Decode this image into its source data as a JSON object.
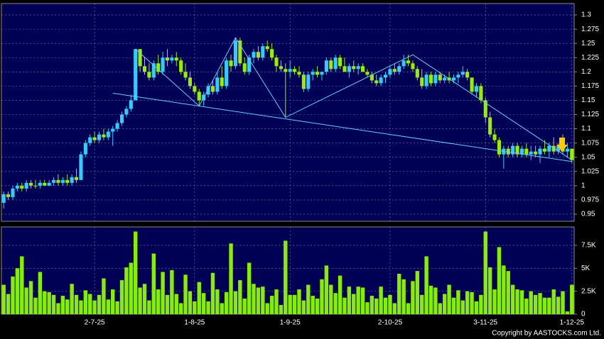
{
  "chart_data": {
    "type": "candlestick",
    "categories": [
      null,
      null,
      null,
      null,
      null,
      null,
      null,
      null,
      null,
      null,
      null,
      null,
      null,
      null,
      null,
      null,
      null,
      null,
      null,
      null,
      "2-7-25",
      null,
      null,
      null,
      null,
      null,
      null,
      null,
      null,
      null,
      null,
      null,
      null,
      null,
      null,
      null,
      null,
      null,
      null,
      null,
      null,
      null,
      "1-8-25",
      null,
      null,
      null,
      null,
      null,
      null,
      null,
      null,
      null,
      null,
      null,
      null,
      null,
      null,
      null,
      null,
      null,
      null,
      null,
      null,
      "1-9-25",
      null,
      null,
      null,
      null,
      null,
      null,
      null,
      null,
      null,
      null,
      null,
      null,
      null,
      null,
      null,
      null,
      null,
      null,
      null,
      null,
      null,
      "2-10-25",
      null,
      null,
      null,
      null,
      null,
      null,
      null,
      null,
      null,
      null,
      null,
      null,
      null,
      null,
      null,
      null,
      null,
      null,
      null,
      null,
      "3-11-25",
      null,
      null,
      null,
      null,
      null,
      null,
      null,
      null,
      null,
      null,
      null,
      null,
      null,
      null,
      null,
      null,
      null,
      null,
      "1-12-25"
    ],
    "ohlc": [
      [
        0.97,
        0.99,
        0.96,
        0.985
      ],
      [
        0.985,
        0.99,
        0.975,
        0.98
      ],
      [
        0.98,
        1.0,
        0.975,
        0.995
      ],
      [
        0.995,
        1.005,
        0.99,
        1.0
      ],
      [
        1.0,
        1.005,
        0.99,
        0.995
      ],
      [
        0.995,
        1.01,
        0.99,
        1.005
      ],
      [
        1.005,
        1.01,
        0.995,
        1.0
      ],
      [
        1.0,
        1.01,
        0.995,
        1.0
      ],
      [
        1.0,
        1.01,
        0.995,
        1.005
      ],
      [
        1.005,
        1.01,
        1.0,
        1.0
      ],
      [
        1.0,
        1.01,
        1.0,
        1.005
      ],
      [
        1.005,
        1.015,
        1.0,
        1.01
      ],
      [
        1.01,
        1.02,
        1.0,
        1.005
      ],
      [
        1.005,
        1.015,
        1.0,
        1.01
      ],
      [
        1.01,
        1.02,
        1.0,
        1.005
      ],
      [
        1.005,
        1.02,
        1.0,
        1.015
      ],
      [
        1.015,
        1.03,
        1.005,
        1.01
      ],
      [
        1.01,
        1.06,
        1.01,
        1.055
      ],
      [
        1.055,
        1.08,
        1.05,
        1.075
      ],
      [
        1.075,
        1.09,
        1.07,
        1.085
      ],
      [
        1.085,
        1.095,
        1.075,
        1.08
      ],
      [
        1.08,
        1.095,
        1.075,
        1.09
      ],
      [
        1.09,
        1.1,
        1.08,
        1.085
      ],
      [
        1.085,
        1.1,
        1.08,
        1.095
      ],
      [
        1.095,
        1.105,
        1.07,
        1.1
      ],
      [
        1.1,
        1.115,
        1.095,
        1.11
      ],
      [
        1.11,
        1.13,
        1.105,
        1.125
      ],
      [
        1.125,
        1.14,
        1.12,
        1.135
      ],
      [
        1.135,
        1.16,
        1.13,
        1.15
      ],
      [
        1.15,
        1.24,
        1.15,
        1.24
      ],
      [
        1.24,
        1.24,
        1.2,
        1.21
      ],
      [
        1.21,
        1.225,
        1.195,
        1.2
      ],
      [
        1.2,
        1.215,
        1.185,
        1.19
      ],
      [
        1.19,
        1.22,
        1.185,
        1.215
      ],
      [
        1.215,
        1.23,
        1.195,
        1.2
      ],
      [
        1.2,
        1.235,
        1.195,
        1.225
      ],
      [
        1.225,
        1.24,
        1.21,
        1.22
      ],
      [
        1.22,
        1.23,
        1.215,
        1.225
      ],
      [
        1.225,
        1.235,
        1.21,
        1.22
      ],
      [
        1.22,
        1.225,
        1.195,
        1.2
      ],
      [
        1.2,
        1.215,
        1.185,
        1.19
      ],
      [
        1.19,
        1.2,
        1.17,
        1.175
      ],
      [
        1.175,
        1.18,
        1.16,
        1.165
      ],
      [
        1.165,
        1.17,
        1.14,
        1.15
      ],
      [
        1.15,
        1.165,
        1.14,
        1.16
      ],
      [
        1.16,
        1.18,
        1.155,
        1.175
      ],
      [
        1.175,
        1.185,
        1.16,
        1.165
      ],
      [
        1.165,
        1.2,
        1.16,
        1.19
      ],
      [
        1.19,
        1.21,
        1.17,
        1.175
      ],
      [
        1.175,
        1.225,
        1.17,
        1.22
      ],
      [
        1.22,
        1.23,
        1.2,
        1.21
      ],
      [
        1.21,
        1.26,
        1.205,
        1.255
      ],
      [
        1.255,
        1.26,
        1.21,
        1.215
      ],
      [
        1.215,
        1.225,
        1.195,
        1.2
      ],
      [
        1.2,
        1.23,
        1.195,
        1.225
      ],
      [
        1.225,
        1.24,
        1.215,
        1.235
      ],
      [
        1.235,
        1.245,
        1.22,
        1.225
      ],
      [
        1.225,
        1.25,
        1.22,
        1.245
      ],
      [
        1.245,
        1.255,
        1.235,
        1.24
      ],
      [
        1.24,
        1.25,
        1.22,
        1.225
      ],
      [
        1.225,
        1.23,
        1.2,
        1.21
      ],
      [
        1.21,
        1.22,
        1.2,
        1.205
      ],
      [
        1.205,
        1.215,
        1.12,
        1.2
      ],
      [
        1.2,
        1.22,
        1.19,
        1.205
      ],
      [
        1.205,
        1.21,
        1.195,
        1.2
      ],
      [
        1.2,
        1.21,
        1.19,
        1.195
      ],
      [
        1.195,
        1.2,
        1.165,
        1.17
      ],
      [
        1.17,
        1.2,
        1.165,
        1.195
      ],
      [
        1.195,
        1.205,
        1.185,
        1.2
      ],
      [
        1.2,
        1.21,
        1.19,
        1.195
      ],
      [
        1.195,
        1.2,
        1.185,
        1.2
      ],
      [
        1.2,
        1.225,
        1.195,
        1.22
      ],
      [
        1.22,
        1.225,
        1.2,
        1.205
      ],
      [
        1.205,
        1.23,
        1.2,
        1.225
      ],
      [
        1.225,
        1.23,
        1.205,
        1.21
      ],
      [
        1.21,
        1.225,
        1.2,
        1.2
      ],
      [
        1.2,
        1.215,
        1.19,
        1.21
      ],
      [
        1.21,
        1.22,
        1.2,
        1.205
      ],
      [
        1.205,
        1.215,
        1.195,
        1.21
      ],
      [
        1.21,
        1.215,
        1.2,
        1.2
      ],
      [
        1.2,
        1.205,
        1.19,
        1.195
      ],
      [
        1.195,
        1.2,
        1.18,
        1.185
      ],
      [
        1.185,
        1.195,
        1.175,
        1.18
      ],
      [
        1.18,
        1.195,
        1.175,
        1.19
      ],
      [
        1.19,
        1.2,
        1.18,
        1.195
      ],
      [
        1.195,
        1.21,
        1.19,
        1.205
      ],
      [
        1.205,
        1.215,
        1.195,
        1.2
      ],
      [
        1.2,
        1.215,
        1.195,
        1.21
      ],
      [
        1.21,
        1.23,
        1.205,
        1.22
      ],
      [
        1.22,
        1.23,
        1.21,
        1.215
      ],
      [
        1.215,
        1.22,
        1.2,
        1.205
      ],
      [
        1.205,
        1.21,
        1.185,
        1.19
      ],
      [
        1.19,
        1.205,
        1.17,
        1.175
      ],
      [
        1.175,
        1.2,
        1.17,
        1.195
      ],
      [
        1.195,
        1.2,
        1.175,
        1.18
      ],
      [
        1.18,
        1.2,
        1.175,
        1.195
      ],
      [
        1.195,
        1.2,
        1.18,
        1.185
      ],
      [
        1.185,
        1.195,
        1.18,
        1.19
      ],
      [
        1.19,
        1.2,
        1.18,
        1.185
      ],
      [
        1.185,
        1.195,
        1.18,
        1.19
      ],
      [
        1.19,
        1.2,
        1.18,
        1.195
      ],
      [
        1.195,
        1.21,
        1.19,
        1.2
      ],
      [
        1.2,
        1.205,
        1.185,
        1.19
      ],
      [
        1.19,
        1.19,
        1.16,
        1.165
      ],
      [
        1.165,
        1.18,
        1.155,
        1.175
      ],
      [
        1.175,
        1.18,
        1.145,
        1.15
      ],
      [
        1.15,
        1.155,
        1.11,
        1.12
      ],
      [
        1.12,
        1.13,
        1.085,
        1.09
      ],
      [
        1.09,
        1.1,
        1.075,
        1.08
      ],
      [
        1.08,
        1.085,
        1.05,
        1.055
      ],
      [
        1.055,
        1.07,
        1.03,
        1.065
      ],
      [
        1.065,
        1.07,
        1.05,
        1.055
      ],
      [
        1.055,
        1.075,
        1.05,
        1.07
      ],
      [
        1.07,
        1.075,
        1.05,
        1.055
      ],
      [
        1.055,
        1.07,
        1.05,
        1.065
      ],
      [
        1.065,
        1.075,
        1.05,
        1.055
      ],
      [
        1.055,
        1.07,
        1.045,
        1.06
      ],
      [
        1.06,
        1.07,
        1.05,
        1.055
      ],
      [
        1.055,
        1.07,
        1.04,
        1.065
      ],
      [
        1.065,
        1.08,
        1.055,
        1.06
      ],
      [
        1.06,
        1.075,
        1.05,
        1.07
      ],
      [
        1.07,
        1.085,
        1.055,
        1.06
      ],
      [
        1.06,
        1.075,
        1.055,
        1.07
      ],
      [
        1.07,
        1.09,
        1.055,
        1.06
      ],
      [
        1.06,
        1.075,
        1.05,
        1.065
      ],
      [
        1.065,
        1.065,
        1.04,
        1.045
      ]
    ],
    "volume": [
      3200,
      2200,
      4100,
      5000,
      6300,
      2900,
      3600,
      1800,
      4600,
      2500,
      2400,
      2100,
      1200,
      2000,
      1600,
      3300,
      2100,
      1500,
      2600,
      2200,
      1500,
      2100,
      3900,
      1600,
      2700,
      1400,
      3700,
      5100,
      5600,
      9000,
      2900,
      3300,
      1500,
      6600,
      2700,
      4600,
      2100,
      4800,
      2200,
      1200,
      4300,
      2500,
      1400,
      3500,
      2300,
      1400,
      4500,
      2700,
      1200,
      2400,
      7700,
      2500,
      3700,
      1700,
      5600,
      3300,
      2900,
      3000,
      1200,
      2000,
      2700,
      1000,
      8000,
      2100,
      2100,
      2700,
      1500,
      3200,
      2000,
      1700,
      3800,
      5300,
      3200,
      2300,
      4200,
      1800,
      3000,
      2200,
      3000,
      2900,
      1300,
      2000,
      1700,
      3000,
      1800,
      2100,
      1200,
      4400,
      3800,
      1200,
      3600,
      4700,
      2100,
      6300,
      3100,
      2900,
      1200,
      2200,
      3200,
      1800,
      2600,
      1500,
      2500,
      2400,
      1400,
      2100,
      9000,
      5100,
      2700,
      7300,
      5300,
      4700,
      3200,
      2700,
      2600,
      1700,
      2500,
      2100,
      2300,
      1800,
      1800,
      2700,
      1900,
      2500,
      300,
      3200
    ],
    "up_color": "#33ccff",
    "down_color": "#99ee00",
    "volume_color": "#88ee00",
    "trend_color": "#66ccff",
    "trendlines": [
      {
        "x": [
          29,
          43,
          51,
          62,
          90,
          125
        ],
        "y": [
          1.24,
          1.14,
          1.26,
          1.12,
          1.23,
          1.045
        ]
      },
      {
        "x": [
          24,
          125
        ],
        "y": [
          1.1625,
          1.0425
        ]
      }
    ],
    "ylim": [
      0.9375,
      1.32
    ],
    "yticks": [
      0.95,
      0.975,
      1,
      1.025,
      1.05,
      1.075,
      1.1,
      1.125,
      1.15,
      1.175,
      1.2,
      1.225,
      1.25,
      1.275,
      1.3
    ],
    "y2lim": [
      0,
      9500
    ],
    "y2ticks": [
      0,
      {
        "value": 2500,
        "label": "2.5K"
      },
      {
        "value": 5000,
        "label": "5K"
      },
      {
        "value": 7500,
        "label": "7.5K"
      }
    ],
    "grid": true,
    "copyright": "Copyright by AASTOCKS.com Ltd."
  }
}
